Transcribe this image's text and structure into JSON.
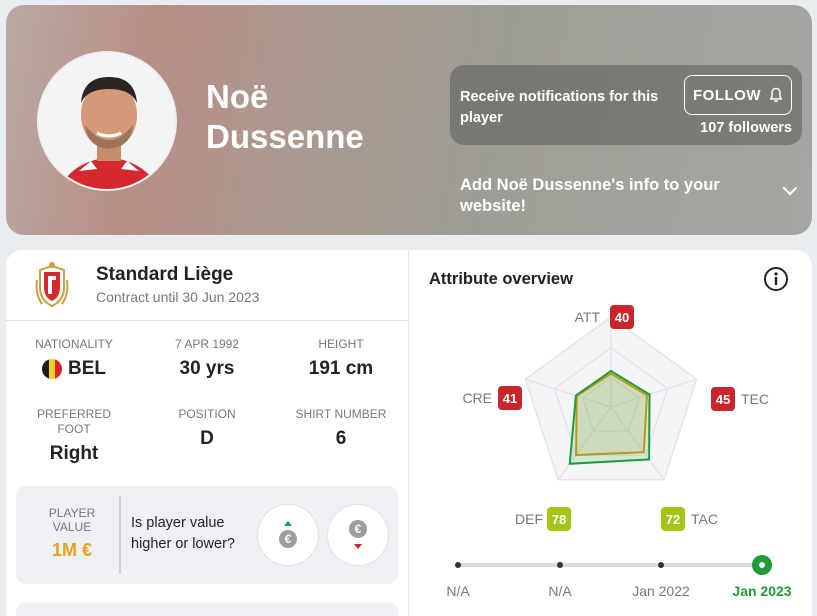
{
  "header": {
    "player_name": "Noë Dussenne",
    "notification_text": "Receive notifications for this player",
    "follow_label": "FOLLOW",
    "followers": "107 followers",
    "website_text": "Add Noë Dussenne's info to your website!"
  },
  "club": {
    "name": "Standard Liège",
    "contract": "Contract until 30 Jun 2023"
  },
  "stats": {
    "nationality_label": "NATIONALITY",
    "nationality_value": "BEL",
    "birth_label": "7 APR 1992",
    "age_value": "30 yrs",
    "height_label": "HEIGHT",
    "height_value": "191 cm",
    "foot_label": "PREFERRED FOOT",
    "foot_value": "Right",
    "position_label": "POSITION",
    "position_value": "D",
    "shirt_label": "SHIRT NUMBER",
    "shirt_value": "6"
  },
  "player_value": {
    "label": "PLAYER VALUE",
    "value": "1M €",
    "question": "Is player value higher or lower?",
    "currency_symbol": "€"
  },
  "attributes": {
    "title": "Attribute overview",
    "items": [
      {
        "key": "ATT",
        "value": 40,
        "color": "#c8252c"
      },
      {
        "key": "TEC",
        "value": 45,
        "color": "#c8252c"
      },
      {
        "key": "TAC",
        "value": 72,
        "color": "#a2c617"
      },
      {
        "key": "DEF",
        "value": 78,
        "color": "#a2c617"
      },
      {
        "key": "CRE",
        "value": 41,
        "color": "#c8252c"
      }
    ],
    "previous": [
      37,
      42,
      62,
      66,
      40
    ],
    "labels": {
      "att": "ATT",
      "tec": "TEC",
      "tac": "TAC",
      "def": "DEF",
      "cre": "CRE"
    },
    "values": {
      "att": "40",
      "tec": "45",
      "tac": "72",
      "def": "78",
      "cre": "41"
    }
  },
  "timeline": {
    "labels": [
      "N/A",
      "N/A",
      "Jan 2022",
      "Jan 2023"
    ],
    "active_index": 3
  },
  "colors": {
    "current_series": "#1e9c36",
    "previous_series": "#d49a12",
    "accent_green": "#1e9c36",
    "value_orange": "#e8a21a"
  }
}
